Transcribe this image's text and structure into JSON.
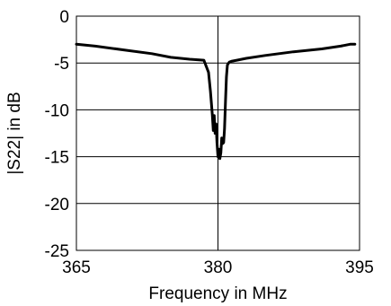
{
  "chart_data": {
    "type": "line",
    "title": "",
    "xlabel": "Frequency in MHz",
    "ylabel": "|S22| in dB",
    "xlim": [
      365,
      395
    ],
    "ylim": [
      -25,
      0
    ],
    "xticks": [
      365,
      380,
      395
    ],
    "yticks": [
      0,
      -5,
      -10,
      -15,
      -20,
      -25
    ],
    "xtick_labels": [
      "365",
      "380",
      "395"
    ],
    "ytick_labels": [
      "0",
      "-5",
      "-10",
      "-15",
      "-20",
      "-25"
    ],
    "grid": true,
    "legend": "none",
    "series": [
      {
        "color": "#000000",
        "x": [
          365.0,
          367.0,
          370.0,
          373.0,
          375.0,
          377.0,
          378.5,
          379.0,
          379.2,
          379.4,
          379.5,
          379.6,
          379.7,
          379.8,
          379.9,
          380.0,
          380.1,
          380.2,
          380.3,
          380.4,
          380.5,
          380.6,
          380.7,
          380.8,
          380.9,
          381.0,
          381.2,
          381.5,
          382.0,
          383.0,
          385.0,
          388.0,
          391.0,
          393.0,
          394.0,
          394.5
        ],
        "y": [
          -3.0,
          -3.2,
          -3.6,
          -4.0,
          -4.4,
          -4.6,
          -4.7,
          -6.0,
          -8.0,
          -10.5,
          -12.2,
          -10.6,
          -12.5,
          -11.5,
          -13.5,
          -15.0,
          -14.2,
          -15.2,
          -14.6,
          -13.0,
          -13.6,
          -13.5,
          -12.0,
          -9.0,
          -6.5,
          -5.2,
          -4.9,
          -4.8,
          -4.7,
          -4.5,
          -4.2,
          -3.8,
          -3.5,
          -3.2,
          -3.0,
          -3.0
        ]
      }
    ]
  }
}
